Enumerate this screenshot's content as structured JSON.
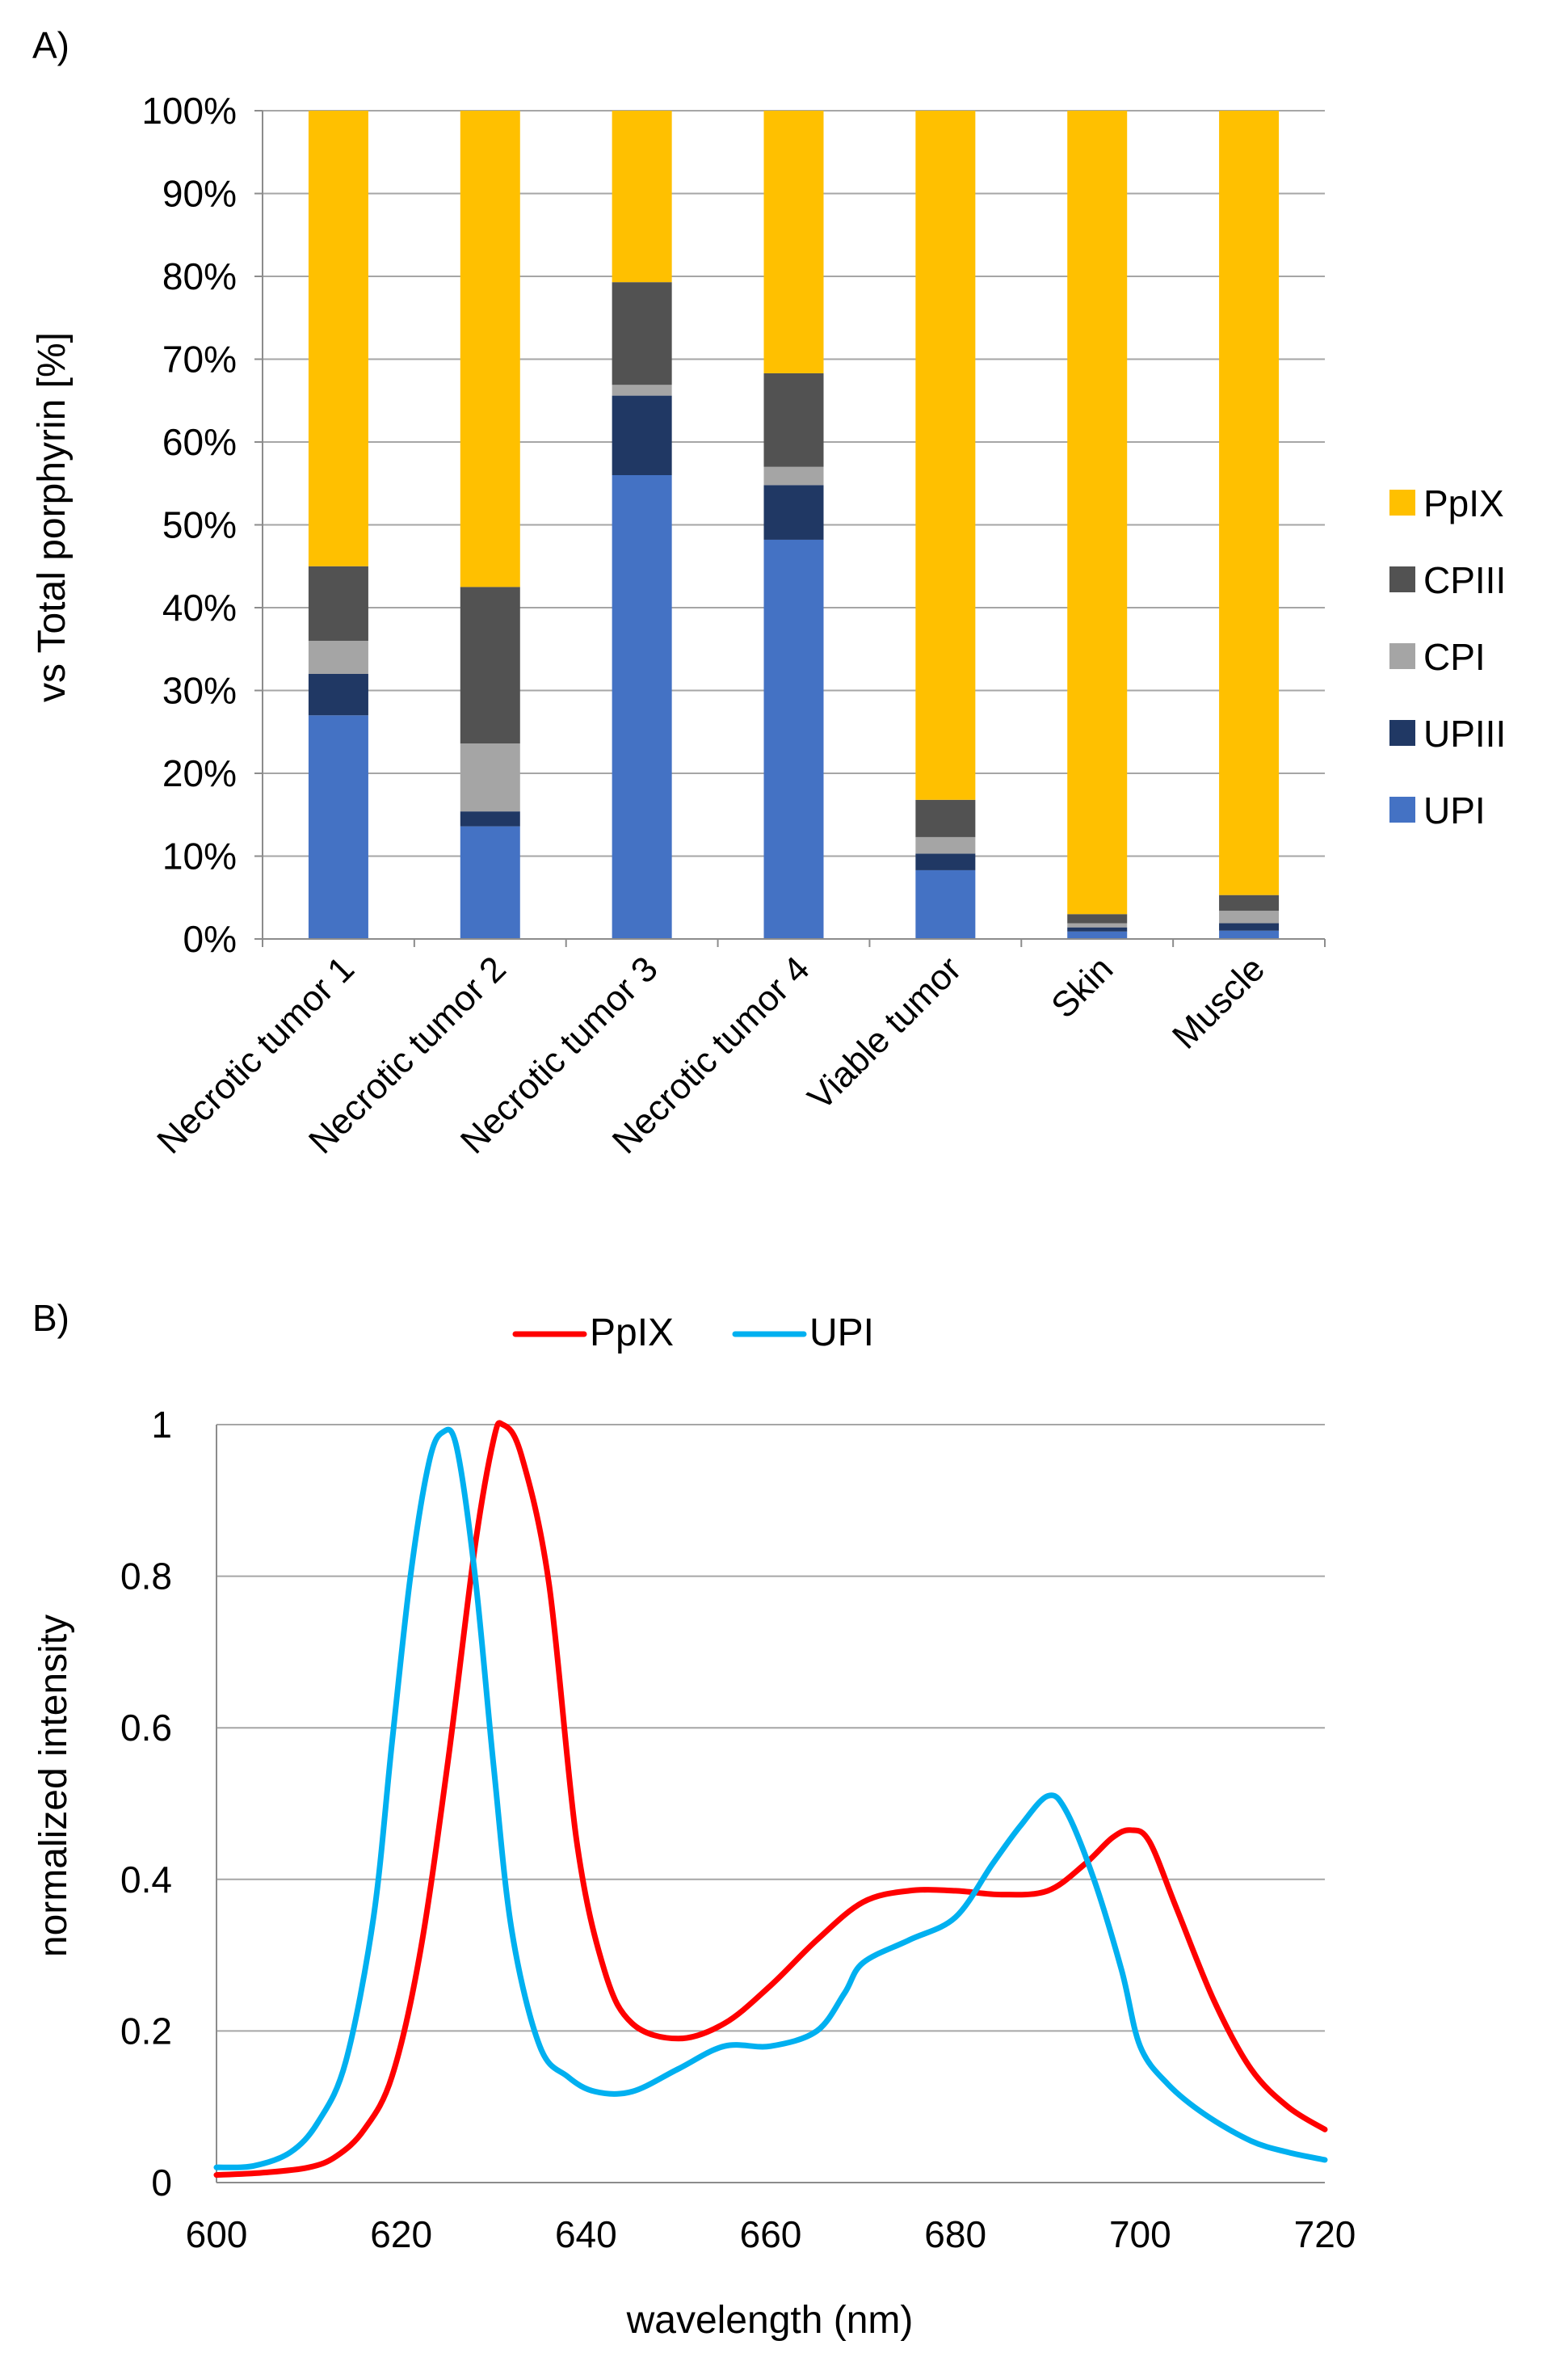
{
  "panel_a": {
    "label": "A)",
    "chart_data": {
      "type": "bar",
      "stacked": true,
      "normalized": true,
      "categories": [
        "Necrotic tumor 1",
        "Necrotic tumor 2",
        "Necrotic tumor 3",
        "Necrotic tumor 4",
        "Viable tumor",
        "Skin",
        "Muscle"
      ],
      "series": [
        {
          "name": "UPI",
          "color": "#4472C4",
          "values": [
            27,
            13.6,
            56,
            48.2,
            8.3,
            0.9,
            1.0
          ]
        },
        {
          "name": "UPIII",
          "color": "#203864",
          "values": [
            5,
            1.8,
            9.6,
            6.6,
            2.0,
            0.5,
            0.9
          ]
        },
        {
          "name": "CPI",
          "color": "#A5A5A5",
          "values": [
            4,
            8.2,
            1.3,
            2.2,
            2.0,
            0.5,
            1.5
          ]
        },
        {
          "name": "CPIII",
          "color": "#525252",
          "values": [
            9,
            18.9,
            12.4,
            11.3,
            4.5,
            1.1,
            1.9
          ]
        },
        {
          "name": "PpIX",
          "color": "#FFC000",
          "values": [
            55,
            57.5,
            20.7,
            31.7,
            83.2,
            97.0,
            94.7
          ]
        }
      ],
      "legend_order": [
        "PpIX",
        "CPIII",
        "CPI",
        "UPIII",
        "UPI"
      ],
      "ylabel": "vs Total porphyrin [%]",
      "yticks": [
        "0%",
        "10%",
        "20%",
        "30%",
        "40%",
        "50%",
        "60%",
        "70%",
        "80%",
        "90%",
        "100%"
      ],
      "ylim": [
        0,
        100
      ],
      "grid": true,
      "legend_position": "right"
    }
  },
  "panel_b": {
    "label": "B)",
    "chart_data": {
      "type": "line",
      "xlabel": "wavelength  (nm)",
      "ylabel": "normalized  intensity",
      "xlim": [
        600,
        720
      ],
      "ylim": [
        0,
        1
      ],
      "xticks": [
        "600",
        "620",
        "640",
        "660",
        "680",
        "700",
        "720"
      ],
      "yticks": [
        "0",
        "0.2",
        "0.4",
        "0.6",
        "0.8",
        "1"
      ],
      "grid": true,
      "legend_position": "top",
      "series": [
        {
          "name": "PpIX",
          "color": "#FF0000",
          "x": [
            600,
            605,
            610,
            613,
            616,
            619,
            622,
            625,
            628,
            630,
            631,
            633,
            636,
            639,
            642,
            645,
            650,
            655,
            660,
            665,
            670,
            675,
            680,
            685,
            690,
            694,
            697,
            699,
            701,
            704,
            708,
            712,
            716,
            720
          ],
          "y": [
            0.01,
            0.013,
            0.02,
            0.035,
            0.07,
            0.14,
            0.3,
            0.55,
            0.84,
            0.98,
            1.0,
            0.96,
            0.79,
            0.45,
            0.28,
            0.21,
            0.19,
            0.21,
            0.26,
            0.32,
            0.37,
            0.385,
            0.385,
            0.38,
            0.385,
            0.42,
            0.455,
            0.465,
            0.45,
            0.36,
            0.24,
            0.15,
            0.1,
            0.07
          ]
        },
        {
          "name": "UPI",
          "color": "#00B0F0",
          "x": [
            600,
            604,
            608,
            611,
            614,
            617,
            619,
            621,
            623,
            624.5,
            626,
            628,
            630,
            632,
            635,
            638,
            641,
            645,
            650,
            655,
            660,
            665,
            668,
            670,
            675,
            680,
            684,
            687,
            690,
            692,
            695,
            698,
            700,
            703,
            707,
            712,
            716,
            720
          ],
          "y": [
            0.02,
            0.022,
            0.04,
            0.08,
            0.16,
            0.35,
            0.58,
            0.8,
            0.95,
            0.99,
            0.97,
            0.8,
            0.55,
            0.33,
            0.18,
            0.14,
            0.12,
            0.12,
            0.15,
            0.18,
            0.18,
            0.2,
            0.25,
            0.29,
            0.32,
            0.35,
            0.42,
            0.47,
            0.51,
            0.49,
            0.4,
            0.28,
            0.18,
            0.13,
            0.09,
            0.055,
            0.04,
            0.03
          ]
        }
      ]
    }
  }
}
